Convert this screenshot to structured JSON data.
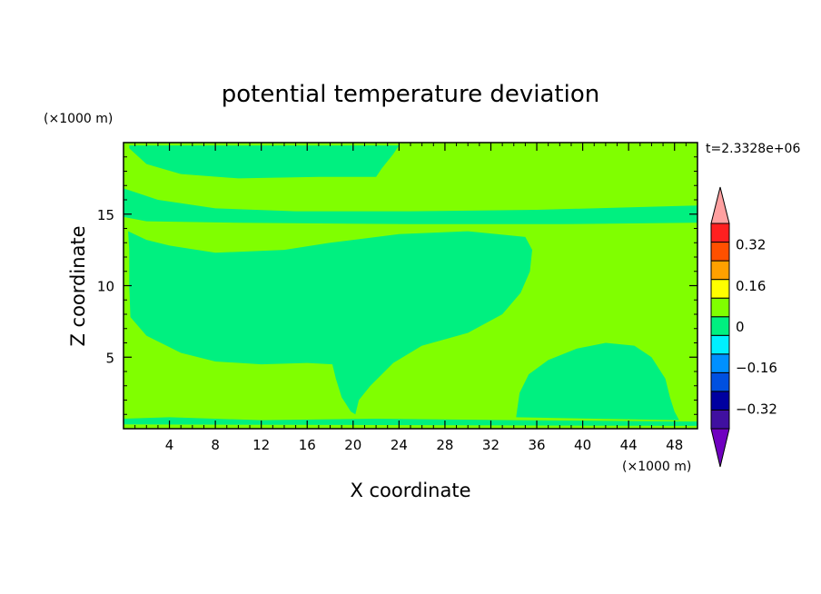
{
  "chart_data": {
    "type": "heatmap",
    "title": "potential temperature deviation",
    "xlabel": "X coordinate",
    "ylabel": "Z coordinate",
    "x_units": "(×1000 m)",
    "y_units": "(×1000 m)",
    "time_label": "t=2.3328e+06",
    "xlim": [
      0,
      50
    ],
    "ylim": [
      0,
      20
    ],
    "x_ticks": [
      4,
      8,
      12,
      16,
      20,
      24,
      28,
      32,
      36,
      40,
      44,
      48
    ],
    "y_ticks": [
      5,
      10,
      15
    ],
    "x_tick_labels": [
      "4",
      "8",
      "12",
      "16",
      "20",
      "24",
      "28",
      "32",
      "36",
      "40",
      "44",
      "48"
    ],
    "y_tick_labels": [
      "5",
      "10",
      "15"
    ],
    "background_level": "0 to 0.08",
    "background_color": "#80ff00",
    "regions": [
      {
        "name": "negative region (-0.08 to 0)",
        "color": "#00f080",
        "outline": [
          [
            0.5,
            19.6
          ],
          [
            2,
            18.5
          ],
          [
            5,
            17.8
          ],
          [
            10,
            17.5
          ],
          [
            17,
            17.6
          ],
          [
            22,
            17.6
          ],
          [
            22.5,
            18.2
          ],
          [
            23.5,
            19.2
          ],
          [
            24,
            19.8
          ],
          [
            0.5,
            19.8
          ]
        ]
      },
      {
        "name": "upper-left band",
        "color": "#00f080",
        "outline": [
          [
            0,
            16.8
          ],
          [
            3,
            16
          ],
          [
            8,
            15.4
          ],
          [
            15,
            15.2
          ],
          [
            25,
            15.2
          ],
          [
            36,
            15.3
          ],
          [
            50,
            15.6
          ],
          [
            50,
            14.4
          ],
          [
            38,
            14.3
          ],
          [
            25,
            14.3
          ],
          [
            10,
            14.4
          ],
          [
            2,
            14.5
          ],
          [
            0,
            14.8
          ]
        ]
      },
      {
        "name": "central mid-level blob",
        "color": "#00f080",
        "outline": [
          [
            0.4,
            13.8
          ],
          [
            2,
            13.2
          ],
          [
            4,
            12.8
          ],
          [
            8,
            12.3
          ],
          [
            14,
            12.5
          ],
          [
            18,
            13
          ],
          [
            24,
            13.6
          ],
          [
            30,
            13.8
          ],
          [
            35,
            13.4
          ],
          [
            35.6,
            12.5
          ],
          [
            35.4,
            11
          ],
          [
            34.6,
            9.5
          ],
          [
            33,
            8
          ],
          [
            30,
            6.7
          ],
          [
            26,
            5.8
          ],
          [
            23.5,
            4.6
          ],
          [
            21.5,
            3
          ],
          [
            20.5,
            2
          ],
          [
            20.2,
            1
          ],
          [
            19.8,
            1.2
          ],
          [
            19,
            2.2
          ],
          [
            18.5,
            3.5
          ],
          [
            18.2,
            4.5
          ],
          [
            16,
            4.6
          ],
          [
            12,
            4.5
          ],
          [
            8,
            4.7
          ],
          [
            5,
            5.3
          ],
          [
            2,
            6.5
          ],
          [
            0.6,
            7.8
          ],
          [
            0.5,
            10
          ],
          [
            0.5,
            12.5
          ]
        ]
      },
      {
        "name": "lower-right blob",
        "color": "#00f080",
        "outline": [
          [
            34.2,
            0.8
          ],
          [
            34.5,
            2.5
          ],
          [
            35.3,
            3.8
          ],
          [
            37,
            4.8
          ],
          [
            39.5,
            5.6
          ],
          [
            42,
            6.0
          ],
          [
            44.5,
            5.8
          ],
          [
            46,
            5.0
          ],
          [
            47.2,
            3.5
          ],
          [
            47.6,
            2.2
          ],
          [
            48,
            1.2
          ],
          [
            48.4,
            0.6
          ]
        ]
      },
      {
        "name": "surface layer",
        "color": "#00f080",
        "outline": [
          [
            0,
            0.3
          ],
          [
            0,
            0.7
          ],
          [
            4,
            0.8
          ],
          [
            12,
            0.6
          ],
          [
            22,
            0.7
          ],
          [
            34,
            0.6
          ],
          [
            50,
            0.5
          ],
          [
            50,
            0.2
          ]
        ]
      }
    ],
    "colorbar": {
      "levels": [
        -0.4,
        -0.32,
        -0.24,
        -0.16,
        -0.08,
        0,
        0.08,
        0.16,
        0.24,
        0.32,
        0.4
      ],
      "colors": [
        "#7000c0",
        "#4010a0",
        "#0000a0",
        "#0050e0",
        "#0090ff",
        "#00f0ff",
        "#00f080",
        "#80ff00",
        "#ffff00",
        "#ffa000",
        "#ff5000",
        "#ff2020",
        "#ffa0a0"
      ],
      "tick_labels": [
        "0.32",
        "0.16",
        "0",
        "-0.16",
        "-0.32"
      ],
      "tick_values": [
        0.32,
        0.16,
        0,
        -0.16,
        -0.32
      ],
      "tick_label_text": [
        "0.32",
        "0.16",
        "0",
        "−0.16",
        "−0.32"
      ]
    }
  }
}
